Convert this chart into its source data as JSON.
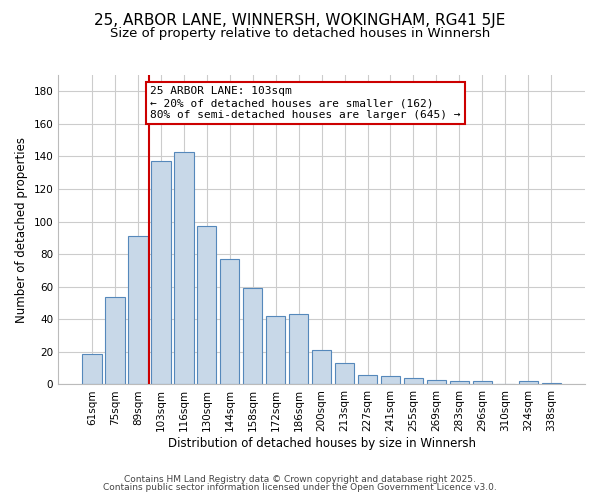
{
  "title": "25, ARBOR LANE, WINNERSH, WOKINGHAM, RG41 5JE",
  "subtitle": "Size of property relative to detached houses in Winnersh",
  "xlabel": "Distribution of detached houses by size in Winnersh",
  "ylabel": "Number of detached properties",
  "bar_labels": [
    "61sqm",
    "75sqm",
    "89sqm",
    "103sqm",
    "116sqm",
    "130sqm",
    "144sqm",
    "158sqm",
    "172sqm",
    "186sqm",
    "200sqm",
    "213sqm",
    "227sqm",
    "241sqm",
    "255sqm",
    "269sqm",
    "283sqm",
    "296sqm",
    "310sqm",
    "324sqm",
    "338sqm"
  ],
  "bar_values": [
    19,
    54,
    91,
    137,
    143,
    97,
    77,
    59,
    42,
    43,
    21,
    13,
    6,
    5,
    4,
    3,
    2,
    2,
    0,
    2,
    1
  ],
  "bar_color": "#c8d8e8",
  "bar_edge_color": "#5588bb",
  "vline_index": 3,
  "vline_color": "#cc0000",
  "annotation_text": "25 ARBOR LANE: 103sqm\n← 20% of detached houses are smaller (162)\n80% of semi-detached houses are larger (645) →",
  "annotation_box_color": "#ffffff",
  "annotation_box_edge": "#cc0000",
  "ylim": [
    0,
    190
  ],
  "yticks": [
    0,
    20,
    40,
    60,
    80,
    100,
    120,
    140,
    160,
    180
  ],
  "footer1": "Contains HM Land Registry data © Crown copyright and database right 2025.",
  "footer2": "Contains public sector information licensed under the Open Government Licence v3.0.",
  "background_color": "#ffffff",
  "grid_color": "#cccccc",
  "title_fontsize": 11,
  "subtitle_fontsize": 9.5,
  "axis_label_fontsize": 8.5,
  "tick_fontsize": 7.5,
  "annotation_fontsize": 8,
  "footer_fontsize": 6.5
}
